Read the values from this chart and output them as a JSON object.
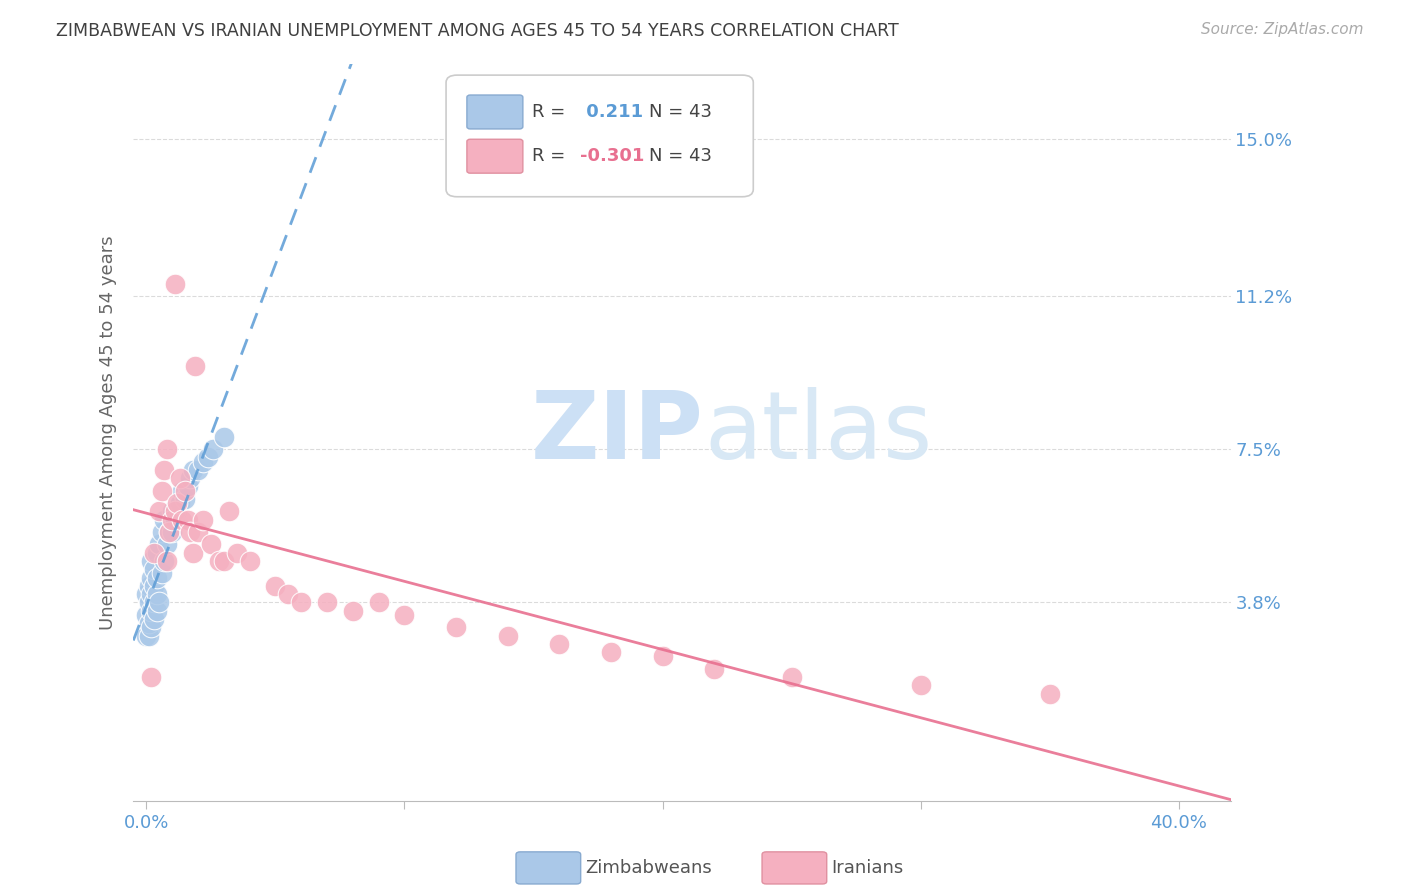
{
  "title": "ZIMBABWEAN VS IRANIAN UNEMPLOYMENT AMONG AGES 45 TO 54 YEARS CORRELATION CHART",
  "source": "Source: ZipAtlas.com",
  "ylabel": "Unemployment Among Ages 45 to 54 years",
  "ytick_labels": [
    "15.0%",
    "11.2%",
    "7.5%",
    "3.8%"
  ],
  "ytick_values": [
    0.15,
    0.112,
    0.075,
    0.038
  ],
  "xlim": [
    -0.005,
    0.42
  ],
  "ylim": [
    -0.01,
    0.168
  ],
  "legend_r_blue": "R =",
  "legend_val_blue": " 0.211",
  "legend_n_blue": "N = 43",
  "legend_r_pink": "R =",
  "legend_val_pink": "-0.301",
  "legend_n_pink": "N = 43",
  "blue_scatter_color": "#aac8e8",
  "pink_scatter_color": "#f5b0c0",
  "blue_line_color": "#5b9bd5",
  "pink_line_color": "#e87090",
  "watermark_zip_color": "#cce0f5",
  "watermark_atlas_color": "#d8e8f5",
  "background_color": "#ffffff",
  "grid_color": "#cccccc",
  "title_color": "#404040",
  "axis_tick_color": "#5b9bd5",
  "zim_x": [
    0.0,
    0.0,
    0.0,
    0.001,
    0.001,
    0.001,
    0.001,
    0.002,
    0.002,
    0.002,
    0.002,
    0.002,
    0.003,
    0.003,
    0.003,
    0.003,
    0.004,
    0.004,
    0.004,
    0.004,
    0.005,
    0.005,
    0.006,
    0.006,
    0.007,
    0.007,
    0.008,
    0.009,
    0.01,
    0.01,
    0.011,
    0.012,
    0.013,
    0.014,
    0.015,
    0.016,
    0.017,
    0.018,
    0.02,
    0.022,
    0.024,
    0.026,
    0.03
  ],
  "zim_y": [
    0.03,
    0.035,
    0.04,
    0.03,
    0.033,
    0.038,
    0.042,
    0.032,
    0.036,
    0.04,
    0.044,
    0.048,
    0.034,
    0.038,
    0.042,
    0.046,
    0.036,
    0.04,
    0.044,
    0.05,
    0.038,
    0.052,
    0.045,
    0.055,
    0.048,
    0.058,
    0.052,
    0.055,
    0.055,
    0.06,
    0.058,
    0.06,
    0.062,
    0.065,
    0.063,
    0.066,
    0.068,
    0.07,
    0.07,
    0.072,
    0.073,
    0.075,
    0.078
  ],
  "iran_x": [
    0.002,
    0.003,
    0.005,
    0.006,
    0.007,
    0.008,
    0.008,
    0.009,
    0.01,
    0.011,
    0.011,
    0.012,
    0.013,
    0.014,
    0.015,
    0.016,
    0.017,
    0.018,
    0.019,
    0.02,
    0.022,
    0.025,
    0.028,
    0.03,
    0.032,
    0.035,
    0.04,
    0.05,
    0.055,
    0.06,
    0.07,
    0.08,
    0.09,
    0.1,
    0.12,
    0.14,
    0.16,
    0.18,
    0.2,
    0.22,
    0.25,
    0.3,
    0.35
  ],
  "iran_y": [
    0.02,
    0.05,
    0.06,
    0.065,
    0.07,
    0.075,
    0.048,
    0.055,
    0.058,
    0.06,
    0.115,
    0.062,
    0.068,
    0.058,
    0.065,
    0.058,
    0.055,
    0.05,
    0.095,
    0.055,
    0.058,
    0.052,
    0.048,
    0.048,
    0.06,
    0.05,
    0.048,
    0.042,
    0.04,
    0.038,
    0.038,
    0.036,
    0.038,
    0.035,
    0.032,
    0.03,
    0.028,
    0.026,
    0.025,
    0.022,
    0.02,
    0.018,
    0.016
  ],
  "xtick_positions": [
    0.0,
    0.1,
    0.2,
    0.3,
    0.4
  ],
  "xtick_show": [
    "0.0%",
    "",
    "",
    "",
    "40.0%"
  ]
}
